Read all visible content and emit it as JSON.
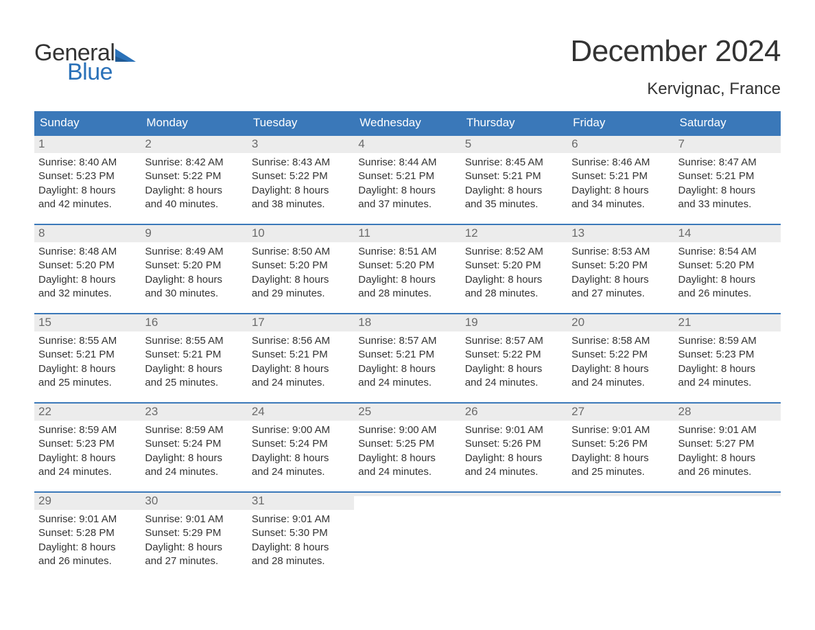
{
  "brand": {
    "word1": "General",
    "word2": "Blue",
    "accent_color": "#2a71b8"
  },
  "title": "December 2024",
  "location": "Kervignac, France",
  "colors": {
    "header_bg": "#3a78b9",
    "header_text": "#ffffff",
    "daynum_bg": "#ececec",
    "daynum_text": "#6a6a6a",
    "body_text": "#333333",
    "page_bg": "#ffffff",
    "week_border": "#3a78b9"
  },
  "fonts": {
    "title_size_pt": 33,
    "location_size_pt": 18,
    "dow_size_pt": 13,
    "daynum_size_pt": 13,
    "body_size_pt": 11
  },
  "days_of_week": [
    "Sunday",
    "Monday",
    "Tuesday",
    "Wednesday",
    "Thursday",
    "Friday",
    "Saturday"
  ],
  "weeks": [
    [
      {
        "n": "1",
        "sunrise": "8:40 AM",
        "sunset": "5:23 PM",
        "daylight_a": "Daylight: 8 hours",
        "daylight_b": "and 42 minutes."
      },
      {
        "n": "2",
        "sunrise": "8:42 AM",
        "sunset": "5:22 PM",
        "daylight_a": "Daylight: 8 hours",
        "daylight_b": "and 40 minutes."
      },
      {
        "n": "3",
        "sunrise": "8:43 AM",
        "sunset": "5:22 PM",
        "daylight_a": "Daylight: 8 hours",
        "daylight_b": "and 38 minutes."
      },
      {
        "n": "4",
        "sunrise": "8:44 AM",
        "sunset": "5:21 PM",
        "daylight_a": "Daylight: 8 hours",
        "daylight_b": "and 37 minutes."
      },
      {
        "n": "5",
        "sunrise": "8:45 AM",
        "sunset": "5:21 PM",
        "daylight_a": "Daylight: 8 hours",
        "daylight_b": "and 35 minutes."
      },
      {
        "n": "6",
        "sunrise": "8:46 AM",
        "sunset": "5:21 PM",
        "daylight_a": "Daylight: 8 hours",
        "daylight_b": "and 34 minutes."
      },
      {
        "n": "7",
        "sunrise": "8:47 AM",
        "sunset": "5:21 PM",
        "daylight_a": "Daylight: 8 hours",
        "daylight_b": "and 33 minutes."
      }
    ],
    [
      {
        "n": "8",
        "sunrise": "8:48 AM",
        "sunset": "5:20 PM",
        "daylight_a": "Daylight: 8 hours",
        "daylight_b": "and 32 minutes."
      },
      {
        "n": "9",
        "sunrise": "8:49 AM",
        "sunset": "5:20 PM",
        "daylight_a": "Daylight: 8 hours",
        "daylight_b": "and 30 minutes."
      },
      {
        "n": "10",
        "sunrise": "8:50 AM",
        "sunset": "5:20 PM",
        "daylight_a": "Daylight: 8 hours",
        "daylight_b": "and 29 minutes."
      },
      {
        "n": "11",
        "sunrise": "8:51 AM",
        "sunset": "5:20 PM",
        "daylight_a": "Daylight: 8 hours",
        "daylight_b": "and 28 minutes."
      },
      {
        "n": "12",
        "sunrise": "8:52 AM",
        "sunset": "5:20 PM",
        "daylight_a": "Daylight: 8 hours",
        "daylight_b": "and 28 minutes."
      },
      {
        "n": "13",
        "sunrise": "8:53 AM",
        "sunset": "5:20 PM",
        "daylight_a": "Daylight: 8 hours",
        "daylight_b": "and 27 minutes."
      },
      {
        "n": "14",
        "sunrise": "8:54 AM",
        "sunset": "5:20 PM",
        "daylight_a": "Daylight: 8 hours",
        "daylight_b": "and 26 minutes."
      }
    ],
    [
      {
        "n": "15",
        "sunrise": "8:55 AM",
        "sunset": "5:21 PM",
        "daylight_a": "Daylight: 8 hours",
        "daylight_b": "and 25 minutes."
      },
      {
        "n": "16",
        "sunrise": "8:55 AM",
        "sunset": "5:21 PM",
        "daylight_a": "Daylight: 8 hours",
        "daylight_b": "and 25 minutes."
      },
      {
        "n": "17",
        "sunrise": "8:56 AM",
        "sunset": "5:21 PM",
        "daylight_a": "Daylight: 8 hours",
        "daylight_b": "and 24 minutes."
      },
      {
        "n": "18",
        "sunrise": "8:57 AM",
        "sunset": "5:21 PM",
        "daylight_a": "Daylight: 8 hours",
        "daylight_b": "and 24 minutes."
      },
      {
        "n": "19",
        "sunrise": "8:57 AM",
        "sunset": "5:22 PM",
        "daylight_a": "Daylight: 8 hours",
        "daylight_b": "and 24 minutes."
      },
      {
        "n": "20",
        "sunrise": "8:58 AM",
        "sunset": "5:22 PM",
        "daylight_a": "Daylight: 8 hours",
        "daylight_b": "and 24 minutes."
      },
      {
        "n": "21",
        "sunrise": "8:59 AM",
        "sunset": "5:23 PM",
        "daylight_a": "Daylight: 8 hours",
        "daylight_b": "and 24 minutes."
      }
    ],
    [
      {
        "n": "22",
        "sunrise": "8:59 AM",
        "sunset": "5:23 PM",
        "daylight_a": "Daylight: 8 hours",
        "daylight_b": "and 24 minutes."
      },
      {
        "n": "23",
        "sunrise": "8:59 AM",
        "sunset": "5:24 PM",
        "daylight_a": "Daylight: 8 hours",
        "daylight_b": "and 24 minutes."
      },
      {
        "n": "24",
        "sunrise": "9:00 AM",
        "sunset": "5:24 PM",
        "daylight_a": "Daylight: 8 hours",
        "daylight_b": "and 24 minutes."
      },
      {
        "n": "25",
        "sunrise": "9:00 AM",
        "sunset": "5:25 PM",
        "daylight_a": "Daylight: 8 hours",
        "daylight_b": "and 24 minutes."
      },
      {
        "n": "26",
        "sunrise": "9:01 AM",
        "sunset": "5:26 PM",
        "daylight_a": "Daylight: 8 hours",
        "daylight_b": "and 24 minutes."
      },
      {
        "n": "27",
        "sunrise": "9:01 AM",
        "sunset": "5:26 PM",
        "daylight_a": "Daylight: 8 hours",
        "daylight_b": "and 25 minutes."
      },
      {
        "n": "28",
        "sunrise": "9:01 AM",
        "sunset": "5:27 PM",
        "daylight_a": "Daylight: 8 hours",
        "daylight_b": "and 26 minutes."
      }
    ],
    [
      {
        "n": "29",
        "sunrise": "9:01 AM",
        "sunset": "5:28 PM",
        "daylight_a": "Daylight: 8 hours",
        "daylight_b": "and 26 minutes."
      },
      {
        "n": "30",
        "sunrise": "9:01 AM",
        "sunset": "5:29 PM",
        "daylight_a": "Daylight: 8 hours",
        "daylight_b": "and 27 minutes."
      },
      {
        "n": "31",
        "sunrise": "9:01 AM",
        "sunset": "5:30 PM",
        "daylight_a": "Daylight: 8 hours",
        "daylight_b": "and 28 minutes."
      },
      {
        "empty": true
      },
      {
        "empty": true
      },
      {
        "empty": true
      },
      {
        "empty": true
      }
    ]
  ],
  "labels": {
    "sunrise": "Sunrise: ",
    "sunset": "Sunset: "
  }
}
